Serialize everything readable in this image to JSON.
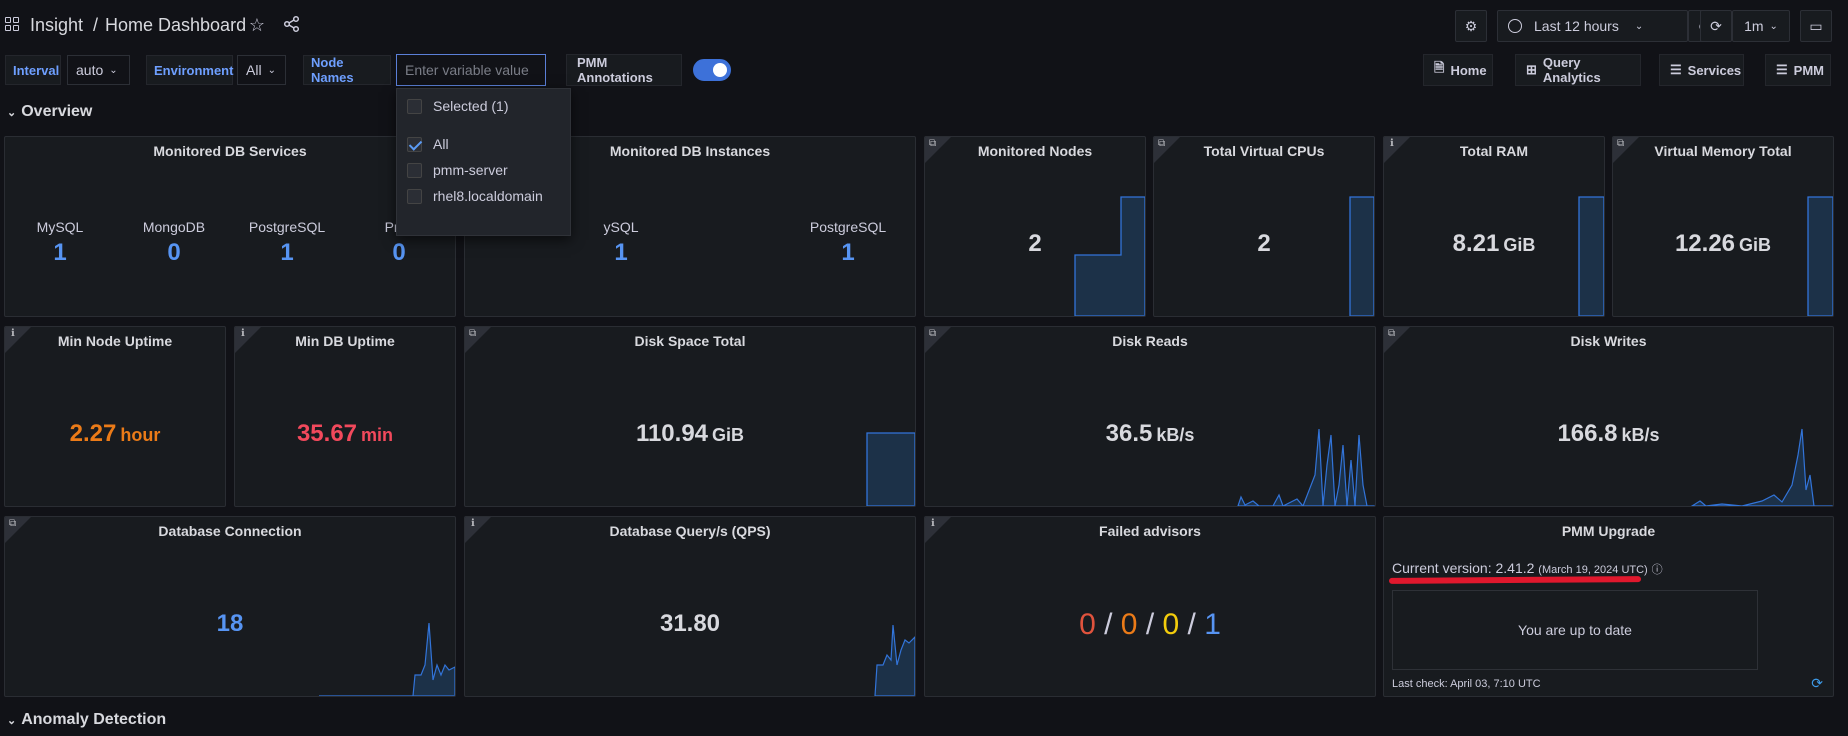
{
  "header": {
    "app_name": "Insight",
    "separator": "/",
    "dashboard_title": "Home Dashboard",
    "time_range": "Last 12 hours",
    "refresh_interval": "1m"
  },
  "variables": {
    "interval_label": "Interval",
    "interval_value": "auto",
    "environment_label": "Environment",
    "environment_value": "All",
    "node_names_label": "Node Names",
    "node_names_placeholder": "Enter variable value",
    "annotations_label": "PMM Annotations",
    "annotations_enabled": true
  },
  "nav_links": [
    {
      "label": "Home",
      "icon": "document-icon"
    },
    {
      "label": "Query Analytics",
      "icon": "grid-icon"
    },
    {
      "label": "Services",
      "icon": "menu-icon"
    },
    {
      "label": "PMM",
      "icon": "menu-icon"
    }
  ],
  "dropdown": {
    "selected_header": "Selected (1)",
    "options": [
      {
        "label": "All",
        "checked": true
      },
      {
        "label": "pmm-server",
        "checked": false
      },
      {
        "label": "rhel8.localdomain",
        "checked": false
      }
    ]
  },
  "rows": {
    "overview": "Overview",
    "anomaly": "Anomaly Detection"
  },
  "panels": {
    "db_services": {
      "title": "Monitored DB Services",
      "items": [
        {
          "name": "MySQL",
          "count": "1"
        },
        {
          "name": "MongoDB",
          "count": "0"
        },
        {
          "name": "PostgreSQL",
          "count": "1"
        },
        {
          "name": "Prox",
          "count": "0"
        }
      ]
    },
    "db_instances": {
      "title": "Monitored DB Instances",
      "items": [
        {
          "name": "ySQL",
          "count": "1"
        },
        {
          "name": "PostgreSQL",
          "count": "1"
        }
      ]
    },
    "monitored_nodes": {
      "title": "Monitored Nodes",
      "value": "2"
    },
    "virtual_cpus": {
      "title": "Total Virtual CPUs",
      "value": "2"
    },
    "total_ram": {
      "title": "Total RAM",
      "value": "8.21",
      "unit": "GiB"
    },
    "virtual_memory": {
      "title": "Virtual Memory Total",
      "value": "12.26",
      "unit": "GiB"
    },
    "min_node_uptime": {
      "title": "Min Node Uptime",
      "value": "2.27",
      "unit": "hour",
      "color": "#eb7b18"
    },
    "min_db_uptime": {
      "title": "Min DB Uptime",
      "value": "35.67",
      "unit": "min",
      "color": "#f2495c"
    },
    "disk_space": {
      "title": "Disk Space Total",
      "value": "110.94",
      "unit": "GiB"
    },
    "disk_reads": {
      "title": "Disk Reads",
      "value": "36.5",
      "unit": "kB/s"
    },
    "disk_writes": {
      "title": "Disk Writes",
      "value": "166.8",
      "unit": "kB/s"
    },
    "db_connection": {
      "title": "Database Connection",
      "value": "18",
      "color": "#5794f2"
    },
    "db_qps": {
      "title": "Database Query/s (QPS)",
      "value": "31.80"
    },
    "failed_advisors": {
      "title": "Failed advisors",
      "values": [
        {
          "v": "0",
          "color": "#e0533d"
        },
        {
          "v": "0",
          "color": "#eb7b18"
        },
        {
          "v": "0",
          "color": "#f2cc0c"
        },
        {
          "v": "1",
          "color": "#5794f2"
        }
      ],
      "separator": "/"
    },
    "pmm_upgrade": {
      "title": "PMM Upgrade",
      "version_text": "Current version: 2.41.2",
      "version_date": "(March 19, 2024 UTC)",
      "status": "You are up to date",
      "last_check": "Last check: April 03, 7:10 UTC"
    }
  }
}
